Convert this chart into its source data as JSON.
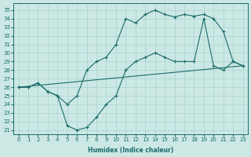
{
  "xlabel": "Humidex (Indice chaleur)",
  "xlim": [
    -0.5,
    23.5
  ],
  "ylim": [
    20.5,
    35.8
  ],
  "yticks": [
    21,
    22,
    23,
    24,
    25,
    26,
    27,
    28,
    29,
    30,
    31,
    32,
    33,
    34,
    35
  ],
  "xticks": [
    0,
    1,
    2,
    3,
    4,
    5,
    6,
    7,
    8,
    9,
    10,
    11,
    12,
    13,
    14,
    15,
    16,
    17,
    18,
    19,
    20,
    21,
    22,
    23
  ],
  "bg_color": "#cce8e4",
  "line_color": "#1a6b6b",
  "grid_color": "#a8d4d0",
  "series_upper_x": [
    0,
    1,
    2,
    3,
    4,
    5,
    6,
    7,
    8,
    9,
    10,
    11,
    12,
    13,
    14,
    15,
    16,
    17,
    18,
    19,
    20,
    21,
    22,
    23
  ],
  "series_upper_y": [
    26.0,
    26.0,
    26.5,
    25.5,
    25.0,
    24.0,
    25.0,
    28.0,
    29.0,
    29.5,
    31.0,
    34.0,
    33.5,
    34.5,
    35.0,
    34.5,
    34.2,
    34.5,
    34.3,
    34.5,
    34.0,
    32.5,
    29.0,
    28.5
  ],
  "series_lower_x": [
    0,
    1,
    2,
    3,
    4,
    5,
    6,
    7,
    8,
    9,
    10,
    11,
    12,
    13,
    14,
    15,
    16,
    17,
    18,
    19,
    20,
    21,
    22,
    23
  ],
  "series_lower_y": [
    26.0,
    26.0,
    26.5,
    25.5,
    25.0,
    21.5,
    21.0,
    21.3,
    22.5,
    24.0,
    25.0,
    28.0,
    29.0,
    29.5,
    30.0,
    29.5,
    29.0,
    29.0,
    29.0,
    34.0,
    28.5,
    28.0,
    29.0,
    28.5
  ],
  "series_trend_x": [
    0,
    23
  ],
  "series_trend_y": [
    26.0,
    28.5
  ]
}
